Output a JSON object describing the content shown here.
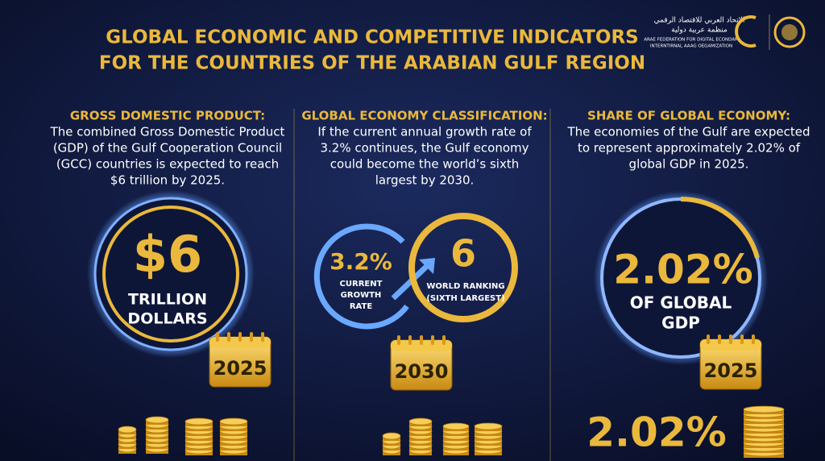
{
  "header": {
    "title_lines": [
      "GLOBAL ECONOMIC AND COMPETITIVE INDICATORS",
      "FOR THE COUNTRIES OF THE ARABIAN GULF REGION"
    ],
    "logo": {
      "arabic_lines": [
        "الاتحاد العربي للاقتصاد الرقمي",
        "منظمة عربية دولية"
      ],
      "english_lines": [
        "ARAE FEDERATION FOR DIGITAL ECONDAM",
        "INTERNTIRNAL AAAG OEGAMIZATION"
      ]
    }
  },
  "panels": [
    {
      "heading": "GROSS DOMESTIC PRODUCT:",
      "body_lines": [
        "The combined Gross Domestic Product",
        "(GDP) of the Gulf Cooperation Council",
        "(GCC) countries is expected to reach",
        "$6 trillion by 2025."
      ],
      "figures": [
        {
          "value": "$6",
          "label_lines": [
            "TRILLION",
            "DOLLARS"
          ]
        }
      ],
      "year": "2025"
    },
    {
      "heading": "GLOBAL ECONOMY CLASSIFICATION:",
      "body_lines": [
        "If the current annual growth rate of",
        "3.2% continues, the Gulf economy",
        "could become the world’s sixth",
        "largest by 2030."
      ],
      "figures": [
        {
          "value": "3.2%",
          "label_lines": [
            "CURRENT",
            "GROWTH",
            "RATE"
          ]
        },
        {
          "value": "6",
          "label_lines": [
            "WORLD RANKING",
            "(SIXTH LARGEST)"
          ]
        }
      ],
      "year": "2030"
    },
    {
      "heading": "SHARE OF GLOBAL ECONOMY:",
      "body_lines": [
        "The economies of the Gulf are expected",
        "to represent approximately 2.02% of",
        "global GDP in 2025."
      ],
      "figures": [
        {
          "value": "2.02%",
          "label_lines": [
            "OF GLOBAL",
            "GDP"
          ]
        }
      ],
      "year": "2025",
      "footer_value": "2.02%"
    }
  ]
}
